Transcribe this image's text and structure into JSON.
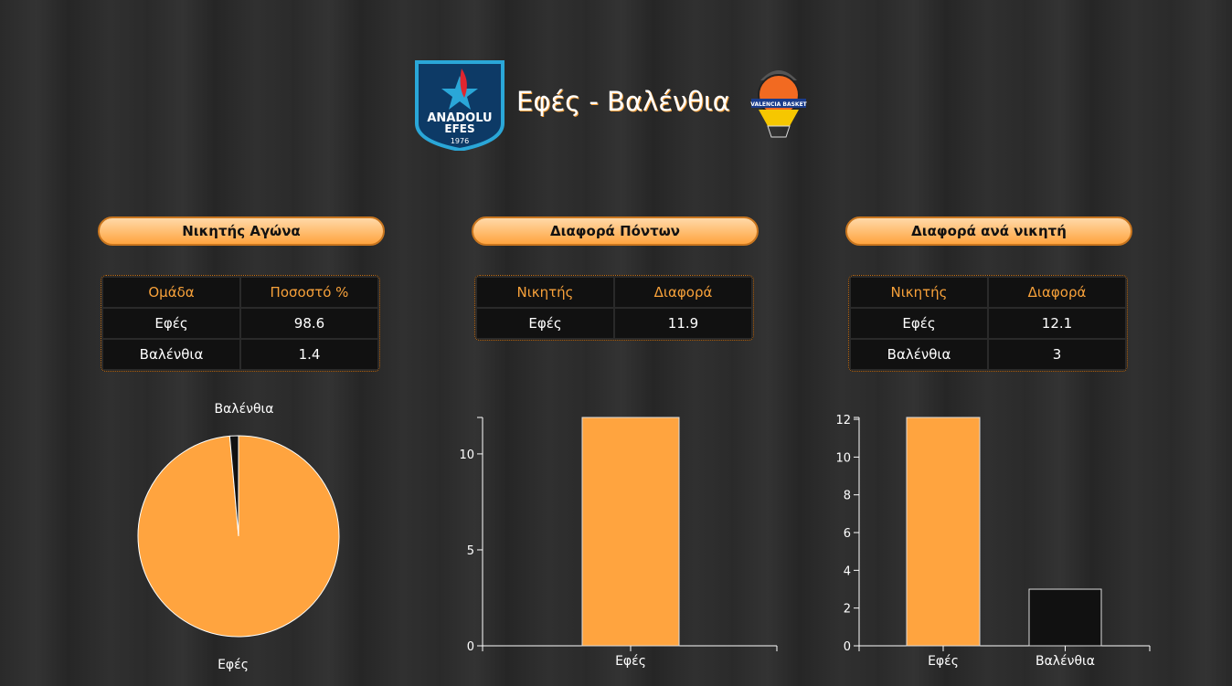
{
  "header": {
    "title": "Εφές - Βαλένθια",
    "home_logo_text": [
      "ANADOLU",
      "EFES",
      "1976"
    ],
    "away_logo_text": "VALENCIA BASKET"
  },
  "colors": {
    "accent": "#ffa43f",
    "dark": "#111111"
  },
  "panels": [
    {
      "title": "Νικητής Αγώνα",
      "headers": [
        "Ομάδα",
        "Ποσοστό %"
      ],
      "rows": [
        [
          "Εφές",
          "98.6"
        ],
        [
          "Βαλένθια",
          "1.4"
        ]
      ]
    },
    {
      "title": "Διαφορά Πόντων",
      "headers": [
        "Νικητής",
        "Διαφορά"
      ],
      "rows": [
        [
          "Εφές",
          "11.9"
        ]
      ]
    },
    {
      "title": "Διαφορά ανά νικητή",
      "headers": [
        "Νικητής",
        "Διαφορά"
      ],
      "rows": [
        [
          "Εφές",
          "12.1"
        ],
        [
          "Βαλένθια",
          "3"
        ]
      ]
    }
  ],
  "chart_data": [
    {
      "type": "pie",
      "categories": [
        "Εφές",
        "Βαλένθια"
      ],
      "values": [
        98.6,
        1.4
      ],
      "colors": [
        "#ffa43f",
        "#111111"
      ]
    },
    {
      "type": "bar",
      "categories": [
        "Εφές"
      ],
      "values": [
        11.9
      ],
      "ylim": [
        0,
        11.9
      ],
      "yticks": [
        0,
        5,
        10
      ],
      "colors": [
        "#ffa43f"
      ]
    },
    {
      "type": "bar",
      "categories": [
        "Εφές",
        "Βαλένθια"
      ],
      "values": [
        12.1,
        3
      ],
      "ylim": [
        0,
        12.1
      ],
      "yticks": [
        0,
        2,
        4,
        6,
        8,
        10,
        12
      ],
      "colors": [
        "#ffa43f",
        "#111111"
      ]
    }
  ]
}
